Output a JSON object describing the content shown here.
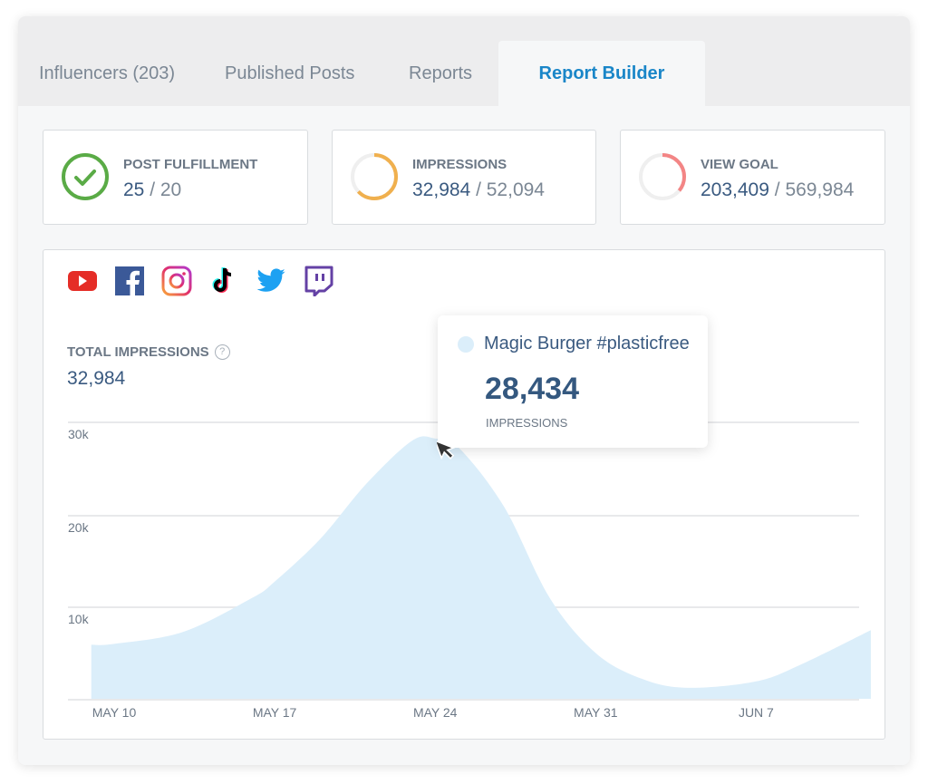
{
  "tabs": [
    {
      "label": "Influencers (203)"
    },
    {
      "label": "Published Posts"
    },
    {
      "label": "Reports"
    },
    {
      "label": "Report Builder",
      "active": true
    }
  ],
  "stats": [
    {
      "label": "POST FULFILLMENT",
      "current": "25",
      "sep": " / ",
      "goal": "20",
      "icon": "check-circle-icon",
      "color": "#5aab46",
      "progress": 1.0
    },
    {
      "label": "IMPRESSIONS",
      "current": "32,984",
      "sep": " / ",
      "goal": "52,094",
      "icon": "progress-ring-icon",
      "color": "#f0b04e",
      "progress": 0.63
    },
    {
      "label": "VIEW GOAL",
      "current": "203,409",
      "sep": " / ",
      "goal": "569,984",
      "icon": "progress-ring-icon",
      "color": "#f38585",
      "progress": 0.36
    }
  ],
  "platforms": [
    "youtube-icon",
    "facebook-icon",
    "instagram-icon",
    "tiktok-icon",
    "twitter-icon",
    "twitch-icon"
  ],
  "total": {
    "label": "TOTAL IMPRESSIONS",
    "help": "?",
    "value": "32,984"
  },
  "tooltip": {
    "name": "Magic Burger #plasticfree",
    "value": "28,434",
    "label": "IMPRESSIONS"
  },
  "chart_data": {
    "type": "area",
    "series": [
      {
        "name": "Magic Burger #plasticfree",
        "color": "#dbeefa",
        "points": [
          [
            "May 9",
            5900
          ],
          [
            "May 10",
            6000
          ],
          [
            "May 13",
            7300
          ],
          [
            "May 16",
            11000
          ],
          [
            "May 17",
            12800
          ],
          [
            "May 19",
            17500
          ],
          [
            "May 21",
            23500
          ],
          [
            "May 23",
            28200
          ],
          [
            "May 24",
            28434
          ],
          [
            "May 25",
            27500
          ],
          [
            "May 27",
            21000
          ],
          [
            "May 29",
            11000
          ],
          [
            "May 31",
            5000
          ],
          [
            "Jun 2",
            2200
          ],
          [
            "Jun 4",
            1200
          ],
          [
            "Jun 7",
            1900
          ],
          [
            "Jun 9",
            3800
          ],
          [
            "Jun 12",
            7500
          ]
        ]
      }
    ],
    "x_ticks": [
      "MAY 10",
      "MAY 17",
      "MAY 24",
      "MAY 31",
      "JUN 7"
    ],
    "y_ticks": [
      "10k",
      "20k",
      "30k"
    ],
    "ylim": [
      0,
      30000
    ],
    "grid": true
  }
}
